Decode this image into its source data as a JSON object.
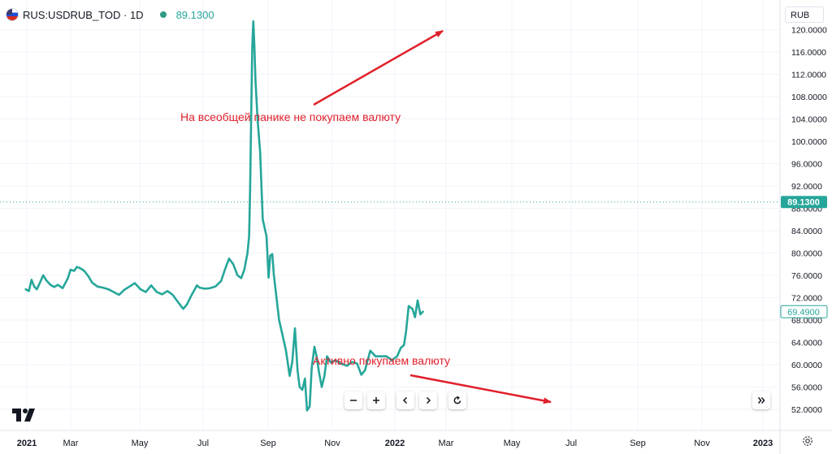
{
  "header": {
    "symbol": "RUS:USDRUB_TOD · 1D",
    "last_price": "89.1300",
    "currency_button": "RUB"
  },
  "current_price_label": "89.1300",
  "last_close_label": "69.4900",
  "annotations": [
    {
      "text": "На всеобщей панике не покупаем валюту"
    },
    {
      "text": "Активно покупаем валюту"
    }
  ],
  "colors": {
    "line": "#26a69a",
    "arrow": "#e0202a",
    "annotation_text": "#e0202a",
    "price_tag": "#26a69a"
  },
  "icons": [
    "tradingview-logo-icon",
    "us-flag-icon",
    "zoom-out-icon",
    "zoom-in-icon",
    "scroll-left-icon",
    "scroll-right-icon",
    "reset-icon",
    "scroll-to-end-icon",
    "settings-gear-icon"
  ],
  "chart_data": {
    "type": "line",
    "title": "",
    "xlabel": "",
    "ylabel": "",
    "ylim": [
      50.5,
      122.5
    ],
    "x_tick_labels": [
      "2021",
      "Mar",
      "May",
      "Jul",
      "Sep",
      "Nov",
      "2022",
      "Mar",
      "May",
      "Jul",
      "Sep",
      "Nov",
      "2023"
    ],
    "y_tick_labels": [
      "52.0000",
      "56.0000",
      "60.0000",
      "64.0000",
      "68.0000",
      "72.0000",
      "76.0000",
      "80.0000",
      "84.0000",
      "88.0000",
      "92.0000",
      "96.0000",
      "100.0000",
      "104.0000",
      "108.0000",
      "112.0000",
      "116.0000",
      "120.0000"
    ],
    "current_price": 89.13,
    "last_close": 69.49,
    "series": [
      {
        "x": [
          "2020-12-30",
          "2021-01-05",
          "2021-01-10",
          "2021-01-15",
          "2021-01-20",
          "2021-01-25",
          "2021-02-01",
          "2021-02-08",
          "2021-02-15",
          "2021-02-22",
          "2021-03-01",
          "2021-03-10",
          "2021-03-20",
          "2021-03-25",
          "2021-04-01",
          "2021-04-06",
          "2021-04-12",
          "2021-04-20",
          "2021-04-28",
          "2021-05-05",
          "2021-05-15",
          "2021-05-25",
          "2021-06-05",
          "2021-06-15",
          "2021-06-25",
          "2021-07-05",
          "2021-07-15",
          "2021-07-25",
          "2021-08-05",
          "2021-08-15",
          "2021-08-25",
          "2021-09-05",
          "2021-09-15",
          "2021-09-25",
          "2021-10-05",
          "2021-10-15",
          "2021-10-25",
          "2021-11-01",
          "2021-11-10",
          "2021-11-20",
          "2021-11-25",
          "2021-12-05",
          "2021-12-15",
          "2021-12-25",
          "2022-01-05",
          "2022-01-12",
          "2022-01-20",
          "2022-01-28",
          "2022-02-05",
          "2022-02-12",
          "2022-02-18",
          "2022-02-24",
          "2022-02-27",
          "2022-03-01",
          "2022-03-03",
          "2022-03-05",
          "2022-03-07",
          "2022-03-09",
          "2022-03-11",
          "2022-03-15",
          "2022-03-20",
          "2022-03-25",
          "2022-04-01",
          "2022-04-05",
          "2022-04-08",
          "2022-04-12",
          "2022-04-15",
          "2022-04-20",
          "2022-04-25",
          "2022-05-01",
          "2022-05-08",
          "2022-05-15",
          "2022-05-20",
          "2022-05-25",
          "2022-05-30",
          "2022-06-03",
          "2022-06-08",
          "2022-06-13",
          "2022-06-17",
          "2022-06-22",
          "2022-06-26",
          "2022-07-01",
          "2022-07-05",
          "2022-07-10",
          "2022-07-15",
          "2022-07-20",
          "2022-07-25",
          "2022-08-01",
          "2022-08-10",
          "2022-08-20",
          "2022-09-01",
          "2022-09-10",
          "2022-09-20",
          "2022-09-28",
          "2022-10-05",
          "2022-10-15",
          "2022-10-25",
          "2022-11-05",
          "2022-11-15",
          "2022-11-25",
          "2022-12-05",
          "2022-12-12",
          "2022-12-18",
          "2022-12-22",
          "2022-12-27",
          "2023-01-03",
          "2023-01-08",
          "2023-01-13",
          "2023-01-18",
          "2023-01-23"
        ],
        "y": [
          73.5,
          73.2,
          75.2,
          74.0,
          73.5,
          74.5,
          76.0,
          75.0,
          74.3,
          73.9,
          74.3,
          73.7,
          75.5,
          77.0,
          76.8,
          77.5,
          77.3,
          76.8,
          75.8,
          74.7,
          74.0,
          73.8,
          73.5,
          73.0,
          72.5,
          73.4,
          74.0,
          74.6,
          73.5,
          73.0,
          74.2,
          73.0,
          72.6,
          73.2,
          72.5,
          71.2,
          70.0,
          70.8,
          72.5,
          74.2,
          73.8,
          73.6,
          73.7,
          74.0,
          75.0,
          77.0,
          79.0,
          78.0,
          76.0,
          75.5,
          77.0,
          80.0,
          83.0,
          92.0,
          105.0,
          117.0,
          121.5,
          117.0,
          111.0,
          104.0,
          98.0,
          86.0,
          83.0,
          75.6,
          79.5,
          79.8,
          76.0,
          72.0,
          68.0,
          65.5,
          62.5,
          58.0,
          60.5,
          66.5,
          59.0,
          56.0,
          55.5,
          57.5,
          51.8,
          52.5,
          59.5,
          63.2,
          61.5,
          58.5,
          56.0,
          58.0,
          61.5,
          60.4,
          60.8,
          60.2,
          59.8,
          60.5,
          60.2,
          58.2,
          59.0,
          62.5,
          61.5,
          61.5,
          61.5,
          60.8,
          61.5,
          63.0,
          63.5,
          66.0,
          70.5,
          70.0,
          68.5,
          71.5,
          69.0,
          69.5
        ]
      }
    ]
  }
}
